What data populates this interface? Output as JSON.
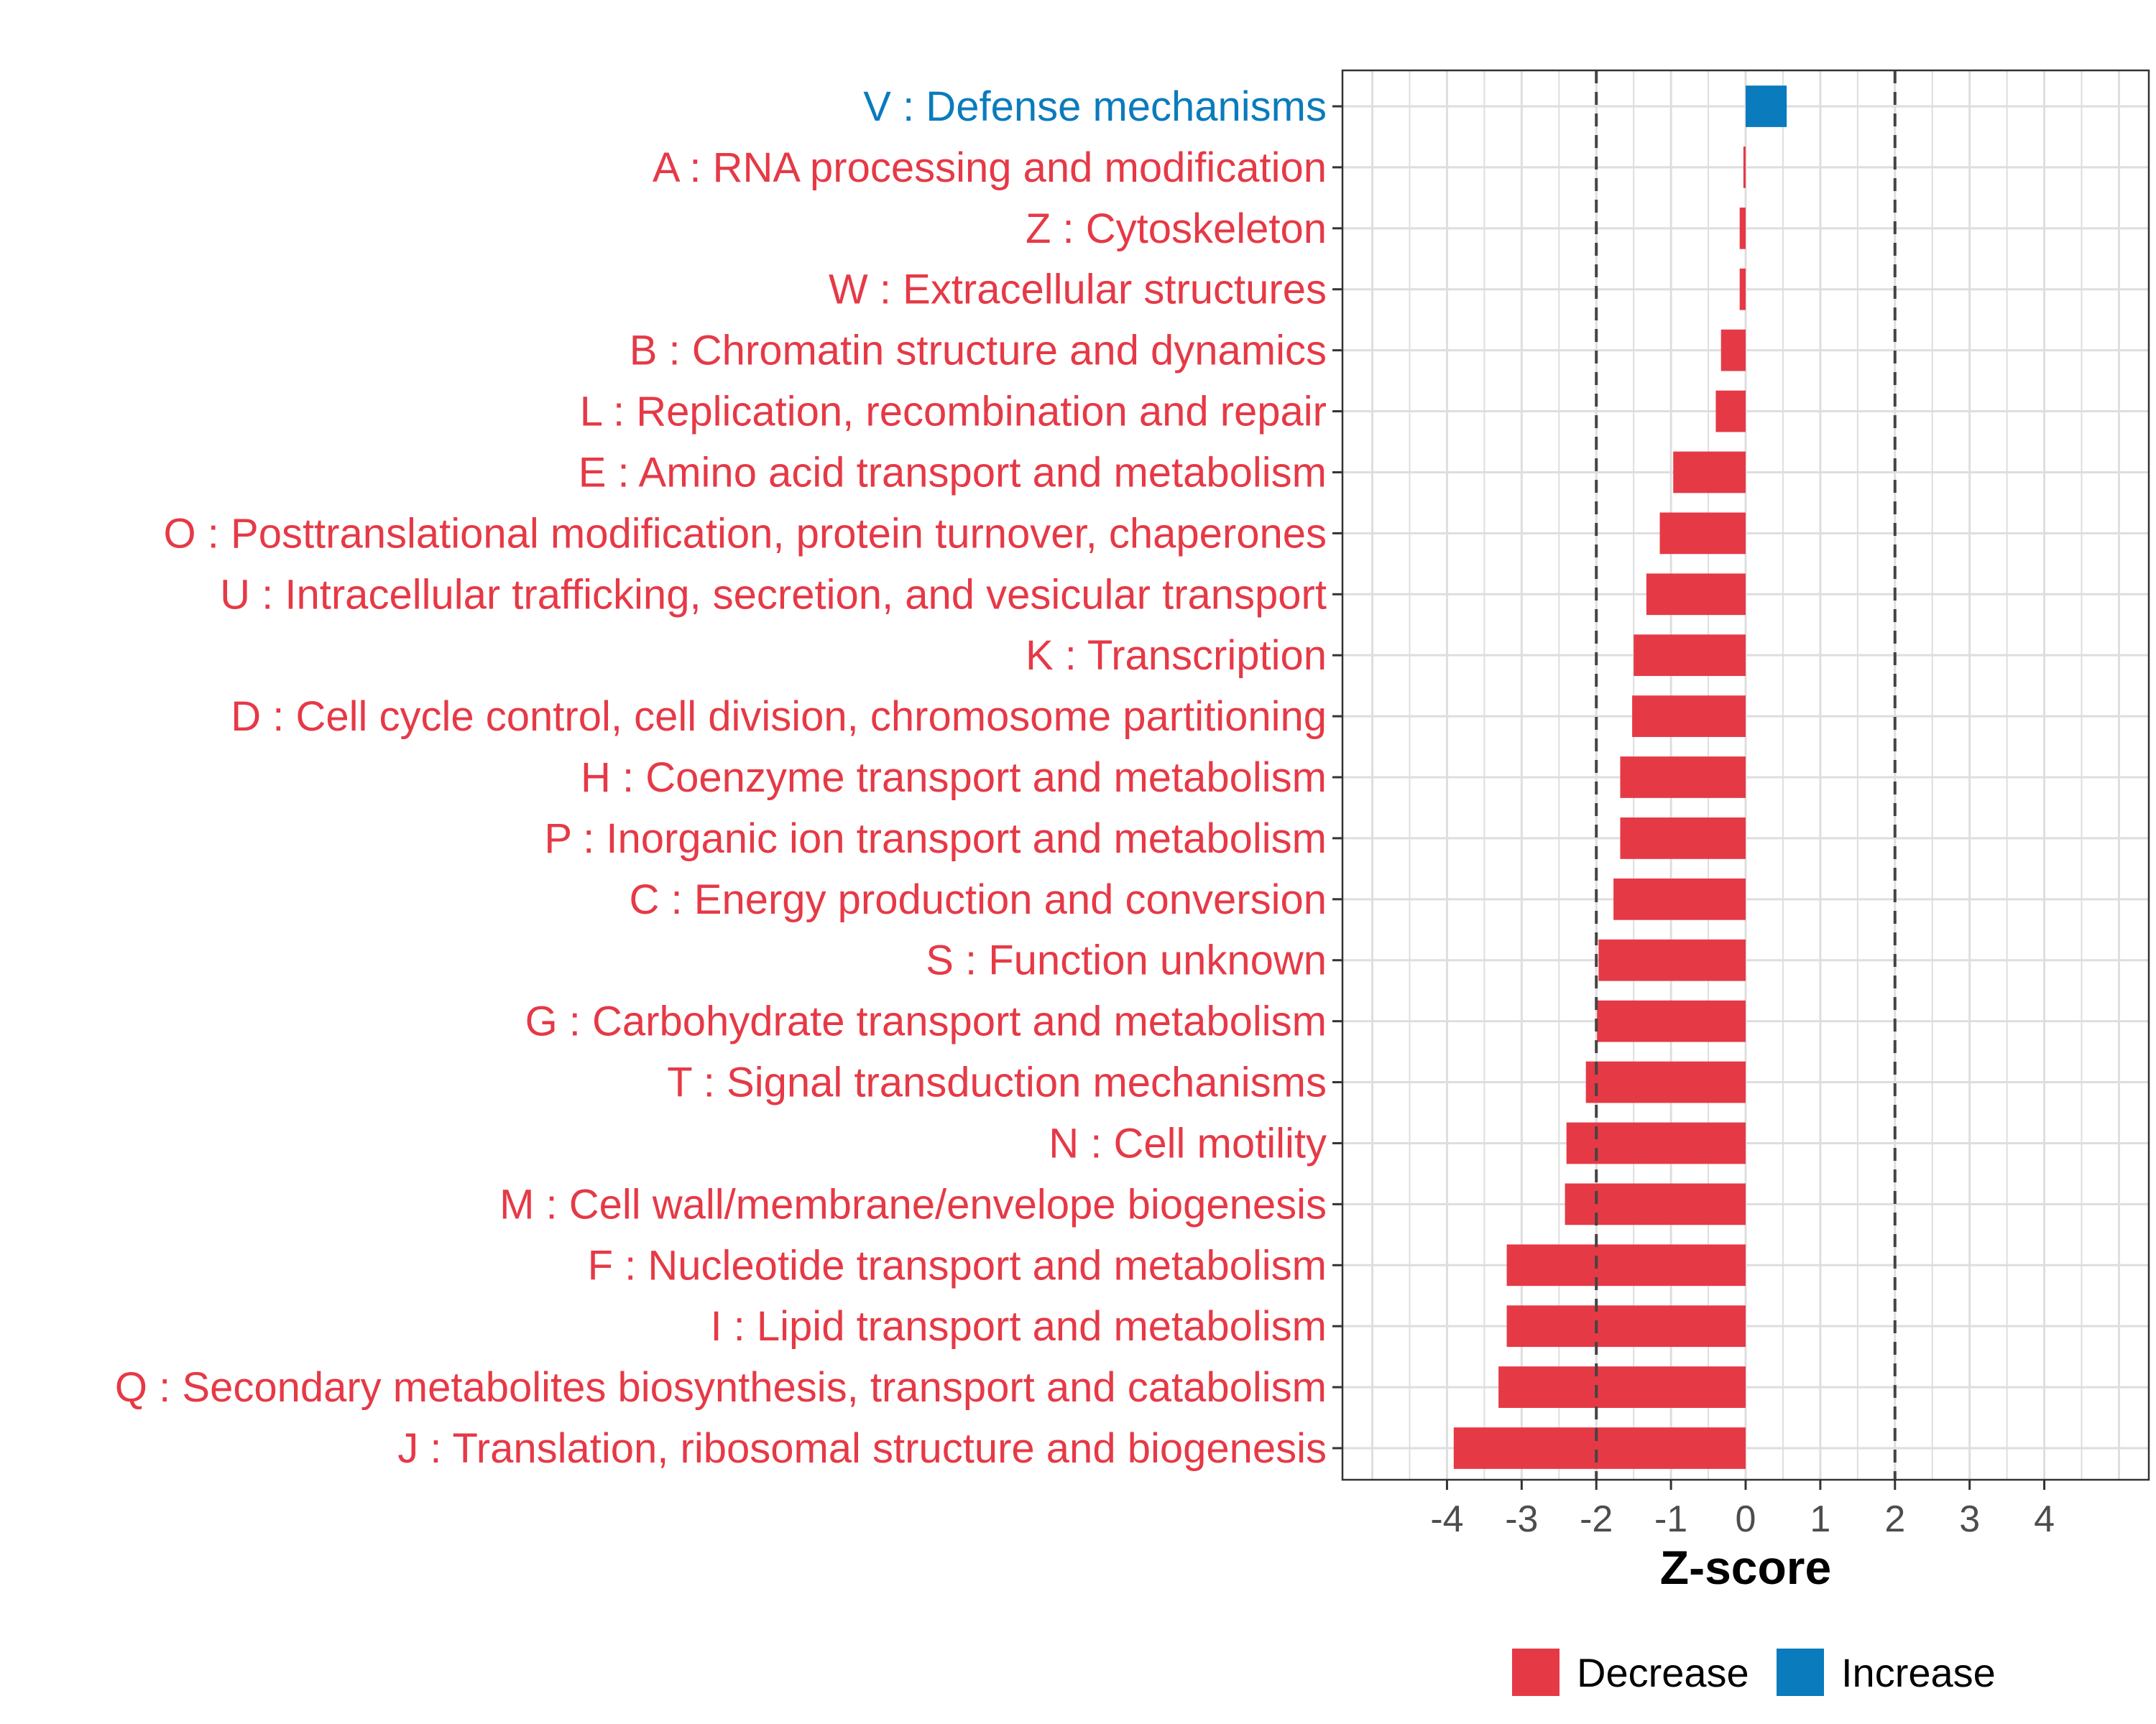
{
  "chart_data": {
    "type": "bar",
    "orientation": "horizontal",
    "categories": [
      "V : Defense mechanisms",
      "A : RNA processing and modification",
      "Z : Cytoskeleton",
      "W : Extracellular structures",
      "B : Chromatin structure and dynamics",
      "L : Replication, recombination and repair",
      "E : Amino acid transport and metabolism",
      "O : Posttranslational modification, protein turnover, chaperones",
      "U : Intracellular trafficking, secretion, and vesicular transport",
      "K : Transcription",
      "D : Cell cycle control, cell division, chromosome partitioning",
      "H : Coenzyme transport and metabolism",
      "P : Inorganic ion transport and metabolism",
      "C : Energy production and conversion",
      "S : Function unknown",
      "G : Carbohydrate transport and metabolism",
      "T : Signal transduction mechanisms",
      "N : Cell motility",
      "M : Cell wall/membrane/envelope biogenesis",
      "F : Nucleotide transport and metabolism",
      "I : Lipid transport and metabolism",
      "Q : Secondary metabolites biosynthesis, transport and catabolism",
      "J : Translation, ribosomal structure and biogenesis"
    ],
    "values": [
      0.55,
      -0.03,
      -0.08,
      -0.08,
      -0.33,
      -0.4,
      -0.97,
      -1.15,
      -1.33,
      -1.5,
      -1.52,
      -1.68,
      -1.68,
      -1.77,
      -1.97,
      -1.99,
      -2.14,
      -2.4,
      -2.42,
      -3.2,
      -3.2,
      -3.31,
      -3.91
    ],
    "groups": [
      "Increase",
      "Decrease",
      "Decrease",
      "Decrease",
      "Decrease",
      "Decrease",
      "Decrease",
      "Decrease",
      "Decrease",
      "Decrease",
      "Decrease",
      "Decrease",
      "Decrease",
      "Decrease",
      "Decrease",
      "Decrease",
      "Decrease",
      "Decrease",
      "Decrease",
      "Decrease",
      "Decrease",
      "Decrease",
      "Decrease"
    ],
    "xlabel": "Z-score",
    "ylabel": "",
    "xlim": [
      -5.4,
      5.4
    ],
    "xticks": [
      -4,
      -3,
      -2,
      -1,
      0,
      1,
      2,
      3,
      4
    ],
    "xtick_labels": [
      "-4",
      "-3",
      "-2",
      "-1",
      "0",
      "1",
      "2",
      "3",
      "4"
    ],
    "reference_lines": [
      -2,
      2
    ],
    "grid": true,
    "legend": {
      "position": "bottom",
      "entries": [
        {
          "name": "Decrease",
          "color": "#e63946"
        },
        {
          "name": "Increase",
          "color": "#0a7bbd"
        }
      ]
    },
    "colors": {
      "Decrease": "#e63946",
      "Increase": "#0a7bbd"
    }
  }
}
